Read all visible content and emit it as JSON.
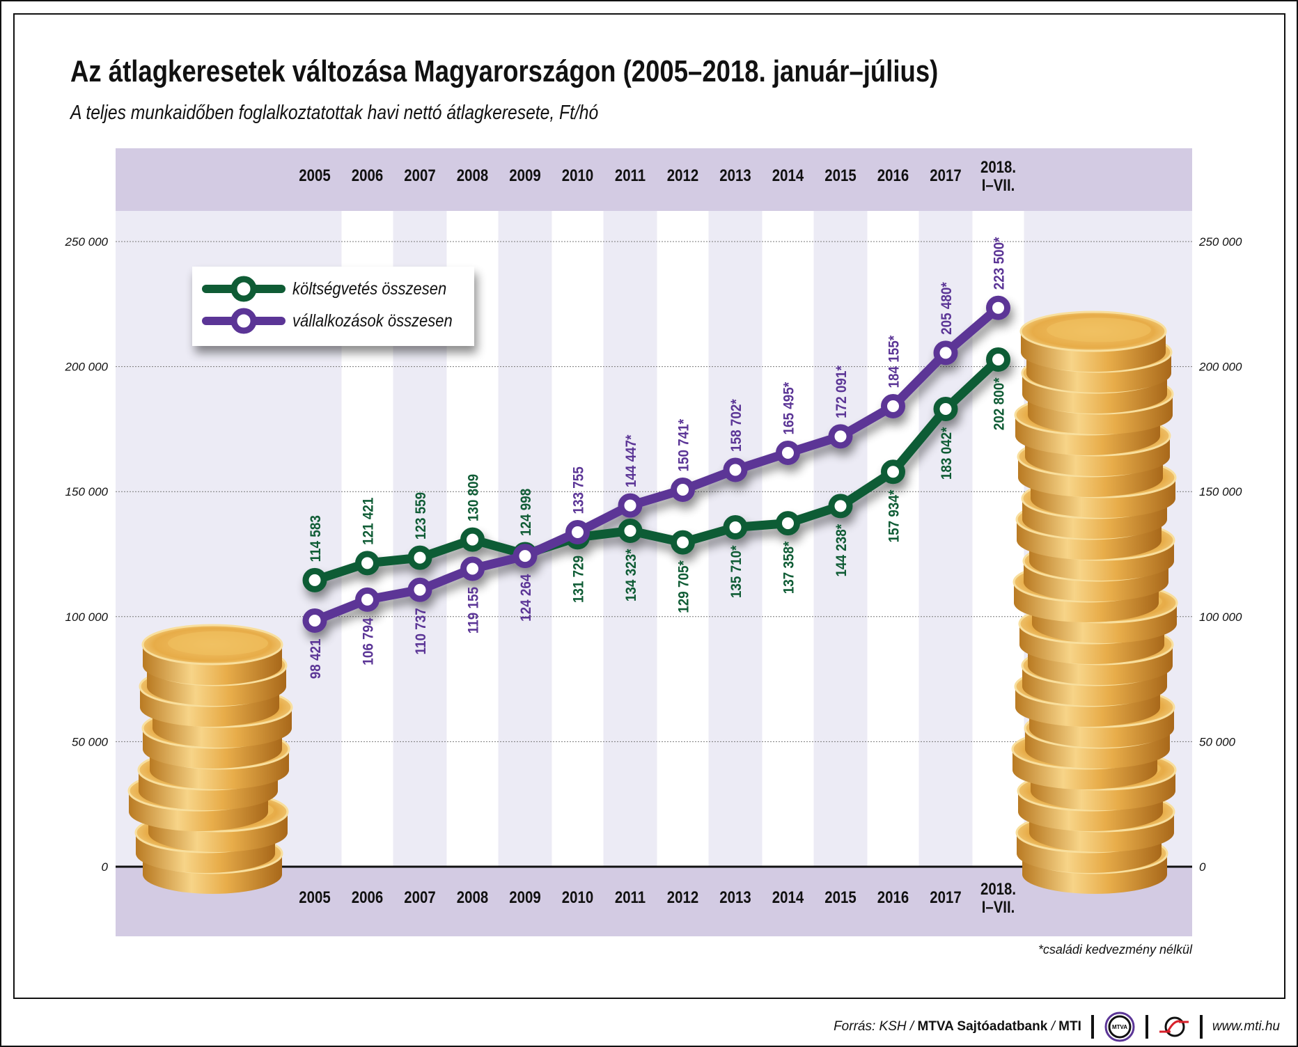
{
  "title": "Az átlagkeresetek változása Magyarországon (2005–2018. január–július)",
  "subtitle": "A teljes munkaidőben foglalkoztatottak havi nettó átlagkeresete, Ft/hó",
  "footnote": "*családi kedvezmény nélkül",
  "footer": {
    "source_prefix": "Forrás: KSH / ",
    "source_bold": "MTVA Sajtóadatbank",
    "source_sep": " / ",
    "source_mti": "MTI",
    "logo_mtva": "MTVA",
    "website": "www.mti.hu"
  },
  "colors": {
    "green": "#0f5c35",
    "purple": "#5b3596",
    "band": "#d3cbe3",
    "stripe": "#ecebf5",
    "gold": "#e0a640"
  },
  "chart_data": {
    "type": "line",
    "title": "Az átlagkeresetek változása Magyarországon (2005–2018. január–július)",
    "categories": [
      "2005",
      "2006",
      "2007",
      "2008",
      "2009",
      "2010",
      "2011",
      "2012",
      "2013",
      "2014",
      "2015",
      "2016",
      "2017",
      "2018. I–VII."
    ],
    "ylim": [
      0,
      250000
    ],
    "yticks": [
      0,
      50000,
      100000,
      150000,
      200000,
      250000
    ],
    "ytick_labels": [
      "0",
      "50 000",
      "100 000",
      "150 000",
      "200 000",
      "250 000"
    ],
    "grid": "horizontal dotted",
    "legend_placement": "top-left",
    "series": [
      {
        "name": "költségvetés összesen",
        "color": "#0f5c35",
        "values": [
          114583,
          121421,
          123559,
          130809,
          124998,
          131729,
          134323,
          129705,
          135710,
          137358,
          144238,
          157934,
          183042,
          202800
        ],
        "labels": [
          "114 583",
          "121 421",
          "123 559",
          "130 809",
          "124 998",
          "131 729",
          "134 323*",
          "129 705*",
          "135 710*",
          "137 358*",
          "144 238*",
          "157 934*",
          "183 042*",
          "202 800*"
        ],
        "label_side": [
          "above",
          "above",
          "above",
          "above",
          "above",
          "below",
          "below",
          "below",
          "below",
          "below",
          "below",
          "below",
          "below",
          "below"
        ]
      },
      {
        "name": "vállalkozások összesen",
        "color": "#5b3596",
        "values": [
          98421,
          106794,
          110737,
          119155,
          124264,
          133755,
          144447,
          150741,
          158702,
          165495,
          172091,
          184155,
          205480,
          223500
        ],
        "labels": [
          "98 421",
          "106 794",
          "110 737",
          "119 155",
          "124 264",
          "133 755",
          "144 447*",
          "150 741*",
          "158 702*",
          "165 495*",
          "172 091*",
          "184 155*",
          "205 480*",
          "223 500*"
        ],
        "label_side": [
          "below",
          "below",
          "below",
          "below",
          "below",
          "above",
          "above",
          "above",
          "above",
          "above",
          "above",
          "above",
          "above",
          "above"
        ]
      }
    ]
  }
}
